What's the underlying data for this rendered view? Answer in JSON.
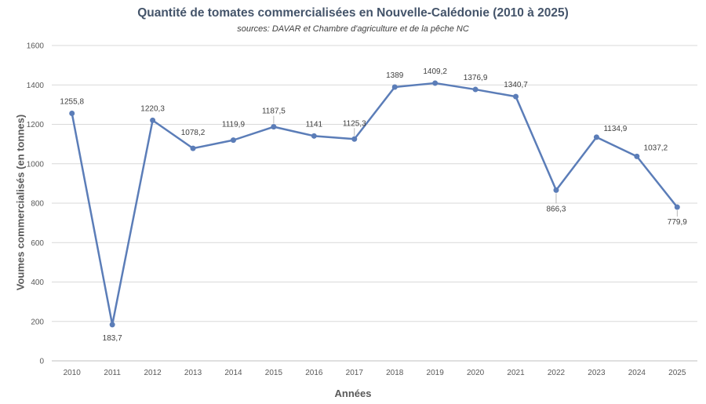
{
  "chart_data": {
    "type": "line",
    "title": "Quantité de tomates commercialisées en Nouvelle-Calédonie (2010 à 2025)",
    "subtitle": "sources: DAVAR et Chambre d'agriculture et de la pêche NC",
    "xlabel": "Années",
    "ylabel": "Voumes commercialisés (en tonnes)",
    "ylim": [
      0,
      1600
    ],
    "yticks": [
      0,
      200,
      400,
      600,
      800,
      1000,
      1200,
      1400,
      1600
    ],
    "grid": true,
    "line_color": "#5b7db8",
    "categories": [
      "2010",
      "2011",
      "2012",
      "2013",
      "2014",
      "2015",
      "2016",
      "2017",
      "2018",
      "2019",
      "2020",
      "2021",
      "2022",
      "2023",
      "2024",
      "2025"
    ],
    "values": [
      1255.8,
      183.7,
      1220.3,
      1078.2,
      1119.9,
      1187.5,
      1141,
      1125.3,
      1389,
      1409.2,
      1376.9,
      1340.7,
      866.3,
      1134.9,
      1037.2,
      779.9
    ],
    "data_labels": [
      "1255,8",
      "183,7",
      "1220,3",
      "1078,2",
      "1119,9",
      "1187,5",
      "1141",
      "1125,3",
      "1389",
      "1409,2",
      "1376,9",
      "1340,7",
      "866,3",
      "1134,9",
      "1037,2",
      "779,9"
    ]
  }
}
